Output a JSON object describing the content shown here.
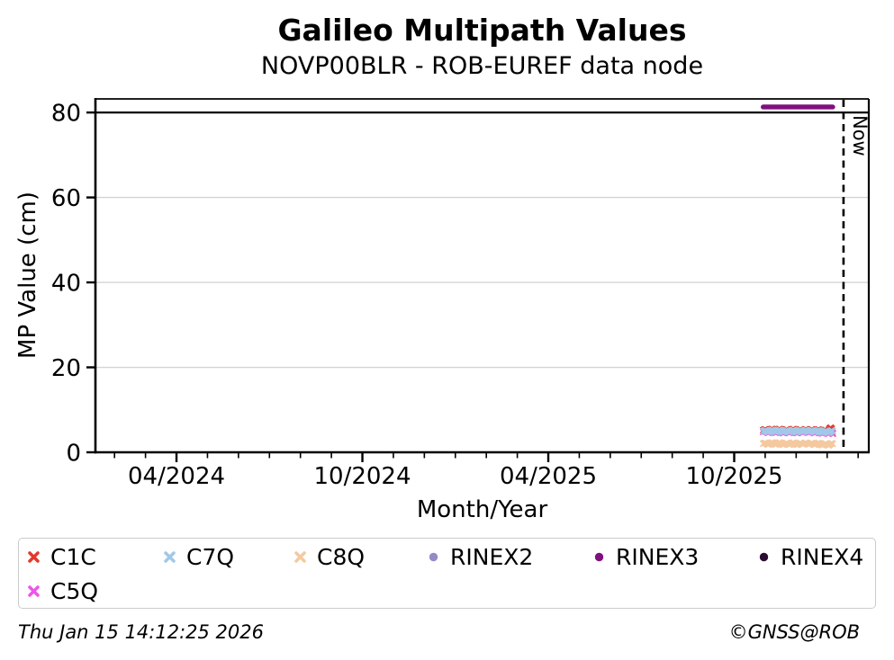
{
  "header": {
    "title": "Galileo Multipath Values",
    "subtitle": "NOVP00BLR - ROB-EUREF data node"
  },
  "footer": {
    "timestamp": "Thu Jan 15 14:12:25 2026",
    "copyright": "©GNSS@ROB"
  },
  "legend": {
    "items": [
      {
        "id": "c1c",
        "label": "C1C",
        "marker": "x",
        "color": "#e4382c"
      },
      {
        "id": "c7q",
        "label": "C7Q",
        "marker": "x",
        "color": "#a2c8e8"
      },
      {
        "id": "c8q",
        "label": "C8Q",
        "marker": "x",
        "color": "#f4c9a0"
      },
      {
        "id": "rinex2",
        "label": "RINEX2",
        "marker": "circle",
        "color": "#948ac6"
      },
      {
        "id": "rinex3",
        "label": "RINEX3",
        "marker": "circle",
        "color": "#7f107f"
      },
      {
        "id": "rinex4",
        "label": "RINEX4",
        "marker": "circle",
        "color": "#2b0b33"
      },
      {
        "id": "c5q",
        "label": "C5Q",
        "marker": "x",
        "color": "#ee55e8"
      }
    ]
  },
  "chart_data": {
    "type": "scatter",
    "title": "Galileo Multipath Values",
    "subtitle": "NOVP00BLR - ROB-EUREF data node",
    "xlabel": "Month/Year",
    "ylabel": "MP Value (cm)",
    "x_unit": "decimal_year",
    "xlim": [
      2024.032,
      2026.112
    ],
    "ylim": [
      0,
      83.2
    ],
    "y_ticks": [
      0,
      20,
      40,
      60,
      80
    ],
    "grid_y": [
      20,
      40,
      60
    ],
    "grid_color": "#d3d3d3",
    "x_ticks": [
      {
        "value": 2024.25,
        "label": "04/2024"
      },
      {
        "value": 2024.75,
        "label": "10/2024"
      },
      {
        "value": 2025.25,
        "label": "04/2025"
      },
      {
        "value": 2025.75,
        "label": "10/2025"
      }
    ],
    "x_minor_tick_interval_years": 0.083333,
    "threshold_line": {
      "y": 80,
      "color": "#000000"
    },
    "now_line": {
      "x": 2026.044,
      "label": "Now",
      "style": "dashed",
      "color": "#000000"
    },
    "series": [
      {
        "name": "C1C",
        "marker": "x",
        "color": "#e4382c",
        "x_start": 2025.828,
        "x_end": 2026.015,
        "values": [
          5.18,
          5.32,
          5.42,
          5.25,
          5.05,
          4.95,
          5.08,
          5.3,
          5.45,
          5.5,
          5.32,
          5.1,
          4.96,
          5.0,
          5.18,
          5.34,
          5.5,
          5.4,
          5.16,
          5.0,
          4.9,
          5.0,
          5.22,
          5.38,
          5.28,
          5.06,
          4.96,
          5.06,
          5.24,
          5.4,
          5.48,
          5.28,
          5.06,
          4.96,
          4.9,
          5.06,
          5.28,
          5.4,
          5.2,
          5.0,
          5.1,
          5.28,
          5.44,
          5.32,
          5.1,
          5.0,
          5.06,
          5.24,
          5.4,
          5.3,
          5.06,
          4.9,
          5.0,
          5.18,
          5.3,
          5.38,
          5.2,
          5.0,
          4.86,
          4.8,
          4.98,
          5.14,
          5.24,
          5.04,
          4.84,
          5.3,
          5.62,
          5.8,
          5.55,
          4.4
        ]
      },
      {
        "name": "C5Q",
        "marker": "x",
        "color": "#ee55e8",
        "x_start": 2025.828,
        "x_end": 2026.015,
        "values": [
          4.78,
          4.9,
          5.0,
          4.86,
          4.68,
          4.58,
          4.7,
          4.88,
          5.02,
          5.08,
          4.94,
          4.74,
          4.6,
          4.64,
          4.78,
          4.92,
          5.06,
          4.98,
          4.78,
          4.64,
          4.54,
          4.64,
          4.82,
          4.96,
          4.88,
          4.68,
          4.58,
          4.68,
          4.83,
          4.96,
          5.04,
          4.88,
          4.68,
          4.58,
          4.54,
          4.68,
          4.86,
          4.96,
          4.82,
          4.64,
          4.74,
          4.88,
          5.02,
          4.92,
          4.74,
          4.64,
          4.68,
          4.83,
          4.96,
          4.88,
          4.68,
          4.54,
          4.64,
          4.78,
          4.88,
          4.96,
          4.83,
          4.64,
          4.5,
          4.44,
          4.58,
          4.74,
          4.83,
          4.68,
          4.5,
          4.4,
          4.54,
          4.78,
          4.92,
          4.58
        ]
      },
      {
        "name": "C7Q",
        "marker": "x",
        "color": "#a2c8e8",
        "x_start": 2025.828,
        "x_end": 2026.015,
        "values": [
          4.95,
          5.08,
          5.18,
          5.05,
          4.88,
          4.78,
          4.9,
          5.08,
          5.22,
          5.28,
          5.15,
          4.95,
          4.82,
          4.86,
          5.0,
          5.14,
          5.27,
          5.2,
          5.0,
          4.86,
          4.76,
          4.86,
          5.04,
          5.18,
          5.1,
          4.9,
          4.8,
          4.9,
          5.05,
          5.18,
          5.26,
          5.1,
          4.9,
          4.8,
          4.76,
          4.9,
          5.08,
          5.18,
          5.04,
          4.86,
          4.95,
          5.1,
          5.24,
          5.14,
          4.95,
          4.85,
          4.9,
          5.05,
          5.18,
          5.1,
          4.9,
          4.76,
          4.86,
          5.0,
          5.1,
          5.18,
          5.05,
          4.86,
          4.72,
          4.66,
          4.8,
          4.95,
          5.05,
          4.9,
          4.72,
          4.62,
          4.76,
          5.0,
          5.12,
          4.98
        ]
      },
      {
        "name": "C8Q",
        "marker": "x",
        "color": "#f4c9a0",
        "x_start": 2025.828,
        "x_end": 2026.015,
        "values": [
          2.02,
          2.14,
          2.24,
          2.1,
          1.92,
          1.82,
          1.94,
          2.12,
          2.26,
          2.32,
          2.18,
          1.98,
          1.84,
          1.88,
          2.02,
          2.16,
          2.3,
          2.22,
          2.02,
          1.88,
          1.78,
          1.88,
          2.06,
          2.2,
          2.12,
          1.92,
          1.82,
          1.92,
          2.07,
          2.2,
          2.28,
          2.12,
          1.92,
          1.82,
          1.78,
          1.92,
          2.1,
          2.2,
          2.06,
          1.88,
          1.98,
          2.12,
          2.26,
          2.16,
          1.98,
          1.88,
          1.92,
          2.07,
          2.2,
          2.12,
          1.92,
          1.78,
          1.88,
          2.02,
          2.12,
          2.2,
          2.07,
          1.88,
          1.74,
          1.68,
          1.82,
          1.98,
          2.07,
          1.92,
          1.74,
          1.64,
          1.78,
          2.02,
          2.14,
          2.0
        ]
      },
      {
        "name": "RINEX3",
        "marker": "line",
        "color": "#7f107f",
        "x_start": 2025.828,
        "x_end": 2026.015,
        "y": 81.3
      }
    ]
  }
}
